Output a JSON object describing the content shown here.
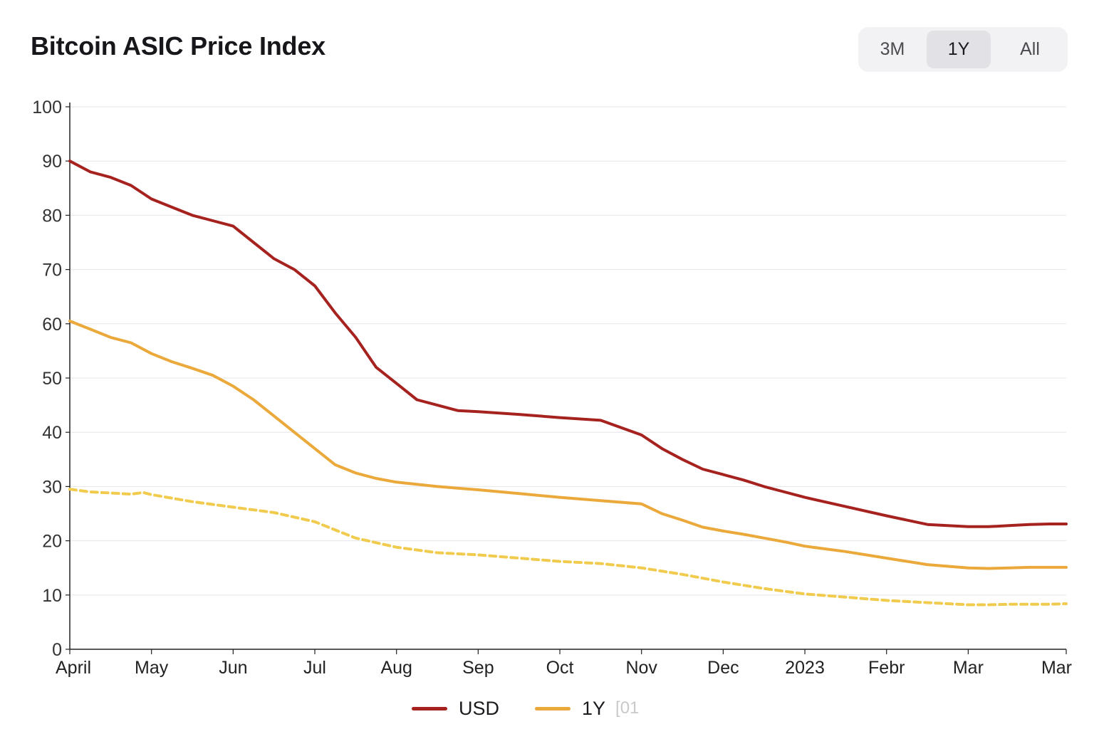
{
  "header": {
    "title": "Bitcoin ASIC Price Index"
  },
  "range_selector": {
    "options": [
      "3M",
      "1Y",
      "All"
    ],
    "selected": "1Y"
  },
  "legend": {
    "items": [
      {
        "label": "USD",
        "color": "#a5221f"
      },
      {
        "label": "1Y",
        "color": "#eaa93a",
        "extra": "[01"
      }
    ]
  },
  "chart_data": {
    "type": "line",
    "title": "Bitcoin ASIC Price Index",
    "xlabel": "",
    "ylabel": "",
    "ylim": [
      0,
      100
    ],
    "yticks": [
      0,
      10,
      20,
      30,
      40,
      50,
      60,
      70,
      80,
      90,
      100
    ],
    "xlim": [
      0,
      12.2
    ],
    "x_tick_labels": [
      "April",
      "May",
      "Jun",
      "Jul",
      "Aug",
      "Sep",
      "Oct",
      "Nov",
      "Dec",
      "2023",
      "Febr",
      "Mar",
      "Mar"
    ],
    "grid": true,
    "legend_position": "bottom-center",
    "series": [
      {
        "name": "USD",
        "color": "#a5221f",
        "style": "solid",
        "x": [
          0,
          0.25,
          0.5,
          0.75,
          1,
          1.25,
          1.5,
          1.75,
          2,
          2.25,
          2.5,
          2.75,
          3,
          3.25,
          3.5,
          3.75,
          4,
          4.25,
          4.5,
          4.75,
          5,
          5.5,
          6,
          6.5,
          7,
          7.25,
          7.5,
          7.75,
          8,
          8.25,
          8.5,
          8.75,
          9,
          9.5,
          10,
          10.5,
          11,
          11.25,
          11.5,
          11.75,
          12,
          12.2
        ],
        "y": [
          90,
          88,
          87,
          85.5,
          83,
          81.5,
          80,
          79,
          78,
          75,
          72,
          70,
          67,
          62,
          57.5,
          52,
          49,
          46,
          45,
          44,
          43.8,
          43.3,
          42.7,
          42.2,
          39.5,
          37,
          35,
          33.2,
          32.2,
          31.2,
          30,
          29,
          28,
          26.3,
          24.6,
          23,
          22.6,
          22.6,
          22.8,
          23,
          23.1,
          23.1
        ]
      },
      {
        "name": "1Y",
        "color": "#eaa93a",
        "style": "solid",
        "x": [
          0,
          0.25,
          0.5,
          0.75,
          1,
          1.25,
          1.5,
          1.75,
          2,
          2.25,
          2.5,
          2.75,
          3,
          3.25,
          3.5,
          3.75,
          4,
          4.5,
          5,
          5.5,
          6,
          6.5,
          7,
          7.25,
          7.5,
          7.75,
          8,
          8.25,
          8.5,
          8.75,
          9,
          9.5,
          10,
          10.5,
          11,
          11.25,
          11.5,
          11.75,
          12,
          12.2
        ],
        "y": [
          60.5,
          59,
          57.5,
          56.5,
          54.5,
          53,
          51.8,
          50.5,
          48.5,
          46,
          43,
          40,
          37,
          34,
          32.5,
          31.5,
          30.8,
          30,
          29.4,
          28.7,
          28,
          27.4,
          26.8,
          25,
          23.8,
          22.5,
          21.8,
          21.2,
          20.5,
          19.8,
          19,
          18,
          16.8,
          15.6,
          15,
          14.9,
          15,
          15.1,
          15.1,
          15.1
        ]
      },
      {
        "name": "",
        "color": "#f0cb4e",
        "style": "dashed",
        "x": [
          0,
          0.25,
          0.5,
          0.75,
          0.9,
          1,
          1.5,
          2,
          2.5,
          3,
          3.25,
          3.5,
          4,
          4.5,
          5,
          5.5,
          6,
          6.5,
          7,
          7.5,
          8,
          8.5,
          9,
          9.5,
          10,
          10.5,
          11,
          11.25,
          11.5,
          12,
          12.2
        ],
        "y": [
          29.5,
          29,
          28.8,
          28.6,
          28.9,
          28.5,
          27.2,
          26.2,
          25.2,
          23.5,
          22,
          20.5,
          18.8,
          17.8,
          17.4,
          16.8,
          16.2,
          15.8,
          15,
          13.8,
          12.4,
          11.2,
          10.2,
          9.6,
          9,
          8.6,
          8.2,
          8.2,
          8.3,
          8.3,
          8.4
        ]
      }
    ]
  }
}
